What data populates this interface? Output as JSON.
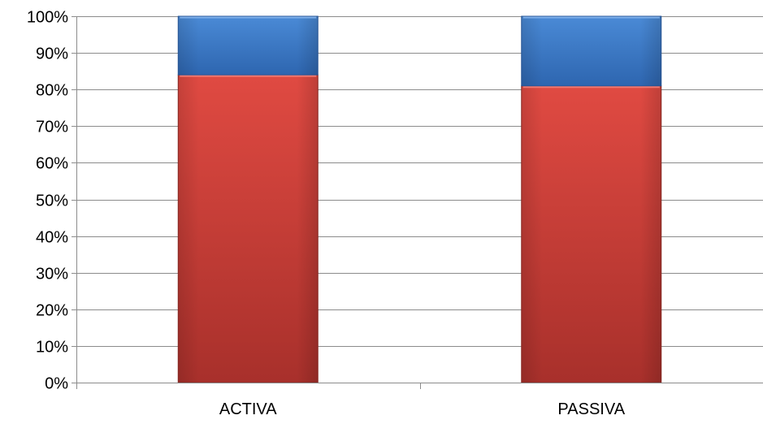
{
  "chart_data": {
    "type": "bar",
    "stacked": true,
    "categories": [
      "ACTIVA",
      "PASSIVA"
    ],
    "series": [
      {
        "values": [
          84,
          81
        ],
        "color": "#d9423b"
      },
      {
        "values": [
          16,
          19
        ],
        "color": "#3a78c8"
      }
    ],
    "ylim": [
      0,
      100
    ],
    "y_ticks": [
      0,
      10,
      20,
      30,
      40,
      50,
      60,
      70,
      80,
      90,
      100
    ],
    "y_tick_labels": [
      "0%",
      "10%",
      "20%",
      "30%",
      "40%",
      "50%",
      "60%",
      "70%",
      "80%",
      "90%",
      "100%"
    ],
    "grid": true,
    "legend": "none"
  }
}
